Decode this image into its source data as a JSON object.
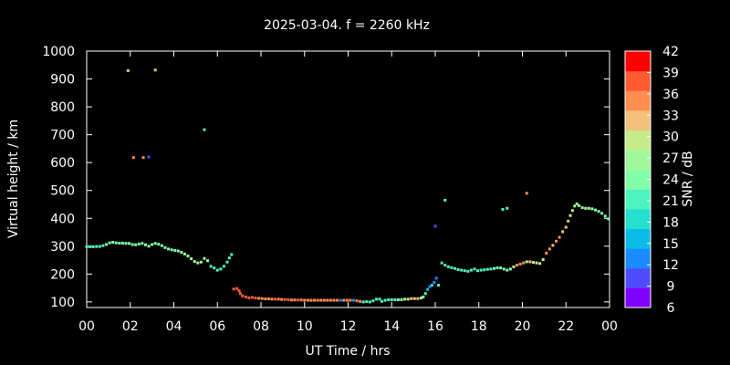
{
  "chart_data": {
    "type": "scatter",
    "title": "2025-03-04. f = 2260 kHz",
    "xlabel": "UT Time / hrs",
    "ylabel": "Virtual height / km",
    "xlim": [
      0,
      24
    ],
    "ylim": [
      80,
      1000
    ],
    "xticks": [
      "00",
      "02",
      "04",
      "06",
      "08",
      "10",
      "12",
      "14",
      "16",
      "18",
      "20",
      "22",
      "00"
    ],
    "yticks": [
      100,
      200,
      300,
      400,
      500,
      600,
      700,
      800,
      900,
      1000
    ],
    "colorbar": {
      "label": "SNR / dB",
      "min": 6,
      "max": 42,
      "ticks": [
        6,
        9,
        12,
        15,
        18,
        21,
        24,
        27,
        30,
        33,
        36,
        39,
        42
      ],
      "colors": [
        "#7f00ff",
        "#4f4bff",
        "#1a8cff",
        "#0bbde8",
        "#25dfd0",
        "#4ef2bd",
        "#80ffa8",
        "#9ff99a",
        "#c6ec8a",
        "#f4c07a",
        "#ff8e50",
        "#ff5a30",
        "#ff0000"
      ]
    },
    "series": [
      {
        "points": [
          [
            0.0,
            298,
            22
          ],
          [
            0.15,
            298,
            22
          ],
          [
            0.3,
            298,
            22
          ],
          [
            0.45,
            299,
            22
          ],
          [
            0.6,
            299,
            22
          ],
          [
            0.75,
            302,
            22
          ],
          [
            0.9,
            306,
            23
          ],
          [
            1.05,
            312,
            24
          ],
          [
            1.2,
            314,
            24
          ],
          [
            1.35,
            312,
            23
          ],
          [
            1.5,
            311,
            23
          ],
          [
            1.65,
            311,
            23
          ],
          [
            1.8,
            310,
            23
          ],
          [
            1.95,
            310,
            23
          ],
          [
            2.1,
            306,
            25
          ],
          [
            2.25,
            305,
            25
          ],
          [
            2.4,
            308,
            25
          ],
          [
            2.55,
            310,
            25
          ],
          [
            2.7,
            305,
            26
          ],
          [
            2.85,
            300,
            25
          ],
          [
            3.0,
            306,
            25
          ],
          [
            3.15,
            310,
            25
          ],
          [
            3.3,
            307,
            24
          ],
          [
            3.45,
            302,
            24
          ],
          [
            3.6,
            295,
            24
          ],
          [
            3.75,
            290,
            24
          ],
          [
            3.9,
            287,
            24
          ],
          [
            4.05,
            285,
            25
          ],
          [
            4.2,
            283,
            25
          ],
          [
            4.35,
            278,
            26
          ],
          [
            4.5,
            272,
            26
          ],
          [
            4.65,
            265,
            26
          ],
          [
            4.8,
            255,
            27
          ],
          [
            4.95,
            245,
            27
          ],
          [
            5.1,
            240,
            27
          ],
          [
            5.25,
            243,
            27
          ],
          [
            5.4,
            256,
            26
          ],
          [
            5.55,
            248,
            26
          ],
          [
            5.7,
            228,
            21
          ],
          [
            5.85,
            222,
            20
          ],
          [
            6.0,
            214,
            20
          ],
          [
            6.15,
            218,
            20
          ],
          [
            6.3,
            228,
            20
          ],
          [
            6.45,
            243,
            20
          ],
          [
            6.55,
            258,
            20
          ],
          [
            6.65,
            270,
            20
          ],
          [
            6.75,
            146,
            38
          ],
          [
            6.9,
            148,
            38
          ],
          [
            7.0,
            140,
            39
          ],
          [
            7.05,
            130,
            38
          ],
          [
            7.15,
            122,
            38
          ],
          [
            7.3,
            118,
            38
          ],
          [
            7.45,
            115,
            39
          ],
          [
            7.6,
            116,
            37
          ],
          [
            7.75,
            114,
            37
          ],
          [
            7.9,
            113,
            36
          ],
          [
            8.05,
            112,
            36
          ],
          [
            8.2,
            111,
            36
          ],
          [
            8.35,
            111,
            36
          ],
          [
            8.5,
            110,
            36
          ],
          [
            8.65,
            110,
            37
          ],
          [
            8.8,
            110,
            36
          ],
          [
            8.95,
            109,
            36
          ],
          [
            9.1,
            109,
            38
          ],
          [
            9.25,
            108,
            37
          ],
          [
            9.4,
            107,
            36
          ],
          [
            9.55,
            107,
            36
          ],
          [
            9.7,
            107,
            37
          ],
          [
            9.85,
            107,
            36
          ],
          [
            10.0,
            106,
            36
          ],
          [
            10.15,
            106,
            36
          ],
          [
            10.3,
            106,
            35
          ],
          [
            10.45,
            106,
            35
          ],
          [
            10.6,
            106,
            35
          ],
          [
            10.75,
            106,
            35
          ],
          [
            10.9,
            106,
            36
          ],
          [
            11.05,
            106,
            36
          ],
          [
            11.2,
            106,
            36
          ],
          [
            11.35,
            106,
            36
          ],
          [
            11.5,
            106,
            35
          ],
          [
            11.65,
            106,
            12
          ],
          [
            11.8,
            106,
            35
          ],
          [
            11.95,
            106,
            35
          ],
          [
            12.1,
            106,
            35
          ],
          [
            12.25,
            106,
            12
          ],
          [
            12.4,
            104,
            35
          ],
          [
            12.55,
            102,
            35
          ],
          [
            12.7,
            100,
            20
          ],
          [
            12.85,
            101,
            20
          ],
          [
            13.0,
            100,
            20
          ],
          [
            13.15,
            104,
            20
          ],
          [
            13.3,
            110,
            20
          ],
          [
            13.45,
            110,
            20
          ],
          [
            13.55,
            102,
            20
          ],
          [
            13.7,
            106,
            22
          ],
          [
            13.85,
            108,
            22
          ],
          [
            14.0,
            108,
            22
          ],
          [
            14.15,
            108,
            22
          ],
          [
            14.3,
            108,
            24
          ],
          [
            14.45,
            108,
            26
          ],
          [
            14.6,
            110,
            28
          ],
          [
            14.75,
            110,
            30
          ],
          [
            14.9,
            112,
            32
          ],
          [
            15.05,
            112,
            33
          ],
          [
            15.2,
            112,
            31
          ],
          [
            15.35,
            114,
            30
          ],
          [
            15.45,
            118,
            28
          ],
          [
            15.55,
            130,
            20
          ],
          [
            15.65,
            145,
            16
          ],
          [
            15.75,
            155,
            14
          ],
          [
            15.85,
            160,
            18
          ],
          [
            15.95,
            170,
            14
          ],
          [
            16.05,
            185,
            12
          ],
          [
            16.15,
            160,
            20
          ],
          [
            16.3,
            240,
            22
          ],
          [
            16.45,
            232,
            22
          ],
          [
            16.6,
            226,
            22
          ],
          [
            16.75,
            223,
            22
          ],
          [
            16.9,
            220,
            22
          ],
          [
            17.05,
            216,
            22
          ],
          [
            17.2,
            214,
            21
          ],
          [
            17.35,
            212,
            20
          ],
          [
            17.5,
            210,
            20
          ],
          [
            17.65,
            214,
            20
          ],
          [
            17.8,
            218,
            20
          ],
          [
            17.95,
            212,
            21
          ],
          [
            18.1,
            214,
            21
          ],
          [
            18.25,
            215,
            22
          ],
          [
            18.4,
            217,
            22
          ],
          [
            18.55,
            218,
            22
          ],
          [
            18.7,
            220,
            23
          ],
          [
            18.85,
            222,
            23
          ],
          [
            19.0,
            222,
            23
          ],
          [
            19.15,
            218,
            23
          ],
          [
            19.3,
            214,
            23
          ],
          [
            19.45,
            218,
            24
          ],
          [
            19.6,
            226,
            30
          ],
          [
            19.75,
            232,
            34
          ],
          [
            19.9,
            236,
            36
          ],
          [
            20.05,
            240,
            36
          ],
          [
            20.2,
            244,
            30
          ],
          [
            20.35,
            244,
            31
          ],
          [
            20.5,
            242,
            30
          ],
          [
            20.65,
            240,
            30
          ],
          [
            20.8,
            238,
            30
          ],
          [
            20.95,
            252,
            29
          ],
          [
            21.1,
            275,
            34
          ],
          [
            21.25,
            290,
            34
          ],
          [
            21.4,
            303,
            33
          ],
          [
            21.55,
            318,
            34
          ],
          [
            21.7,
            332,
            34
          ],
          [
            21.85,
            352,
            33
          ],
          [
            22.0,
            368,
            32
          ],
          [
            22.1,
            390,
            31
          ],
          [
            22.2,
            410,
            30
          ],
          [
            22.3,
            428,
            29
          ],
          [
            22.4,
            444,
            28
          ],
          [
            22.5,
            452,
            28
          ],
          [
            22.6,
            445,
            27
          ],
          [
            22.75,
            438,
            26
          ],
          [
            22.9,
            436,
            26
          ],
          [
            23.05,
            436,
            26
          ],
          [
            23.2,
            434,
            26
          ],
          [
            23.35,
            430,
            25
          ],
          [
            23.5,
            425,
            25
          ],
          [
            23.65,
            418,
            24
          ],
          [
            23.8,
            408,
            24
          ],
          [
            23.95,
            398,
            24
          ],
          [
            1.9,
            930,
            31
          ],
          [
            3.15,
            932,
            31
          ],
          [
            2.15,
            618,
            34
          ],
          [
            2.6,
            618,
            36
          ],
          [
            2.85,
            620,
            10
          ],
          [
            5.4,
            718,
            22
          ],
          [
            16.0,
            372,
            10
          ],
          [
            16.45,
            465,
            22
          ],
          [
            19.1,
            432,
            22
          ],
          [
            19.3,
            436,
            22
          ],
          [
            20.2,
            490,
            34
          ]
        ]
      }
    ]
  }
}
